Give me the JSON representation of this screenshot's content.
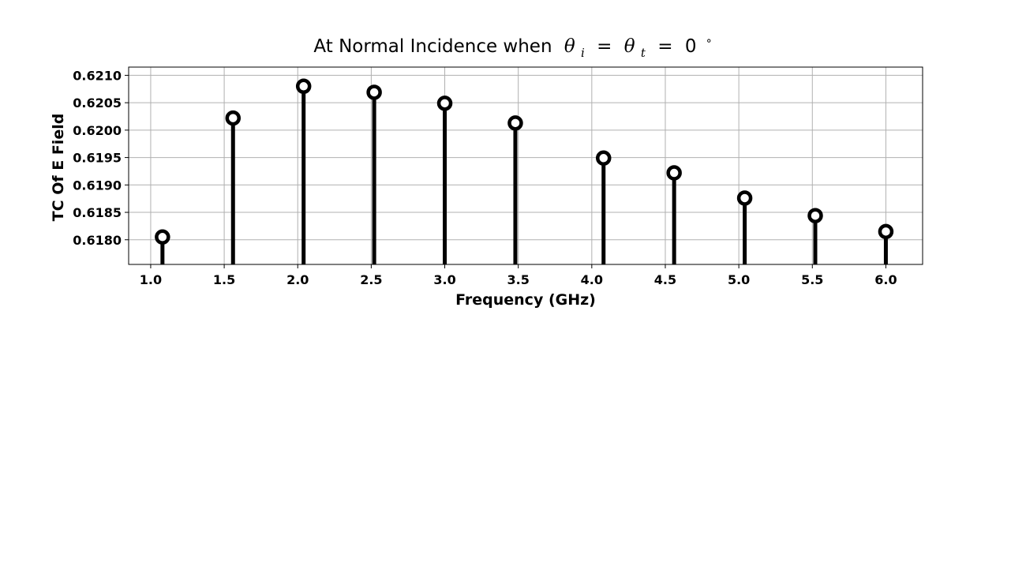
{
  "chart_data": {
    "type": "stem",
    "title": "At Normal Incidence when",
    "title_math": {
      "theta_symbol": "θ",
      "sub_i": "i",
      "sub_t": "t",
      "equals": "=",
      "zero": "0",
      "degree": "∘"
    },
    "xlabel": "Frequency (GHz)",
    "ylabel": "TC Of E Field",
    "xlim": [
      0.85,
      6.25
    ],
    "ylim": [
      0.61755,
      0.62115
    ],
    "grid": true,
    "x_ticks": [
      "1.0",
      "1.5",
      "2.0",
      "2.5",
      "3.0",
      "3.5",
      "4.0",
      "4.5",
      "5.0",
      "5.5",
      "6.0"
    ],
    "y_ticks": [
      "0.6180",
      "0.6185",
      "0.6190",
      "0.6195",
      "0.6200",
      "0.6205",
      "0.6210"
    ],
    "x": [
      1.08,
      1.56,
      2.04,
      2.52,
      3.0,
      3.48,
      4.08,
      4.56,
      5.04,
      5.52,
      6.0
    ],
    "y": [
      0.61805,
      0.62022,
      0.6208,
      0.62069,
      0.62049,
      0.62013,
      0.61949,
      0.61922,
      0.61876,
      0.61844,
      0.61815
    ],
    "marker_color": "#000000",
    "grid_color": "#b0b0b0"
  }
}
